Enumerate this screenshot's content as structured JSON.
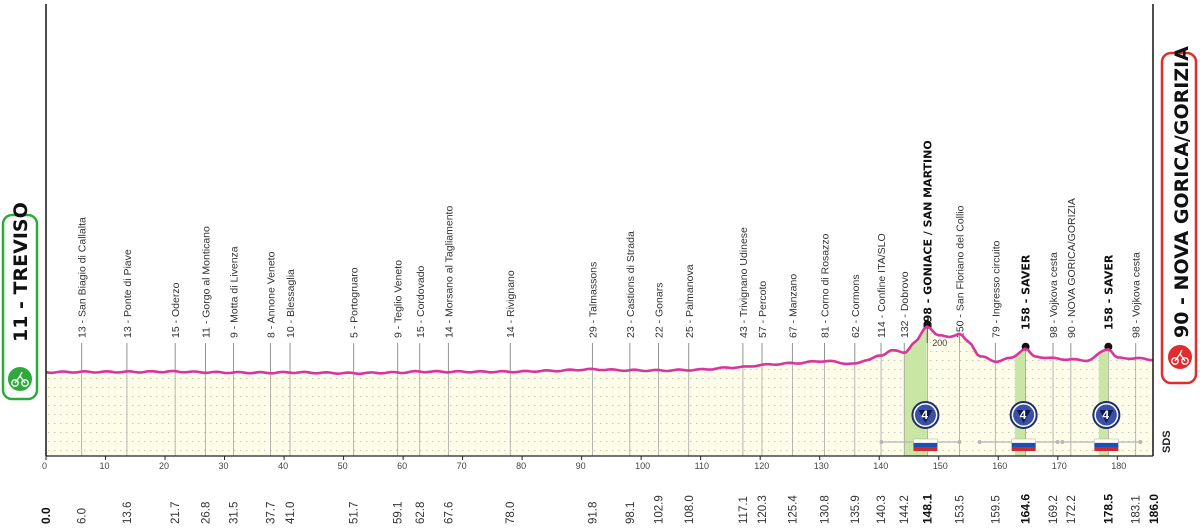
{
  "chart_data": {
    "type": "area",
    "start": {
      "altitude": "11",
      "name": "TREVISO",
      "label": "11 - TREVISO"
    },
    "finish": {
      "altitude": "90",
      "name": "NOVA GORICA/GORIZIA",
      "label": "90 - NOVA GORICA/GORIZIA"
    },
    "x_unit": "km",
    "xlim": [
      0,
      186
    ],
    "x_ticks": [
      0,
      10,
      20,
      30,
      40,
      50,
      60,
      70,
      80,
      90,
      100,
      110,
      120,
      130,
      140,
      150,
      160,
      170,
      180
    ],
    "inner_y_tick": "200",
    "waypoints": [
      {
        "km": "6.0",
        "label": "13 - San Biagio di Callalta"
      },
      {
        "km": "13.6",
        "label": "13 - Ponte di Piave"
      },
      {
        "km": "21.7",
        "label": "15 - Oderzo"
      },
      {
        "km": "26.8",
        "label": "11 - Gorgo al Monticano"
      },
      {
        "km": "31.5",
        "label": "9 - Motta di Livenza"
      },
      {
        "km": "37.7",
        "label": "8 - Annone Veneto"
      },
      {
        "km": "41.0",
        "label": "10 - Blessaglia"
      },
      {
        "km": "51.7",
        "label": "5 - Portogruaro"
      },
      {
        "km": "59.1",
        "label": "9 - Teglio Veneto"
      },
      {
        "km": "62.8",
        "label": "15 - Cordovado"
      },
      {
        "km": "67.6",
        "label": "14 - Morsano al Tagliamento"
      },
      {
        "km": "78.0",
        "label": "14 - Rivignano"
      },
      {
        "km": "91.8",
        "label": "29 - Talmassons"
      },
      {
        "km": "98.1",
        "label": "23 - Castions di Strada"
      },
      {
        "km": "102.9",
        "label": "22 - Gonars"
      },
      {
        "km": "108.0",
        "label": "25 - Palmanova"
      },
      {
        "km": "117.1",
        "label": "43 - Trivignano Udinese"
      },
      {
        "km": "120.3",
        "label": "57 - Percoto"
      },
      {
        "km": "125.4",
        "label": "67 - Manzano"
      },
      {
        "km": "130.8",
        "label": "81 - Corno di Rosazzo"
      },
      {
        "km": "135.9",
        "label": "62 - Cormons"
      },
      {
        "km": "140.3",
        "label": "114 - Confine ITA/SLO"
      },
      {
        "km": "144.2",
        "label": "132 - Dobrovo"
      },
      {
        "km": "148.1",
        "label": "298 - GONIACE / SAN MARTINO",
        "major": true,
        "climb": true
      },
      {
        "km": "153.5",
        "label": "250 - San Floriano del Collio"
      },
      {
        "km": "159.5",
        "label": "79 - Ingresso circuito"
      },
      {
        "km": "164.6",
        "label": "158 - SAVER",
        "major": true,
        "climb": true
      },
      {
        "km": "169.2",
        "label": "98 - Vojkova cesta"
      },
      {
        "km": "172.2",
        "label": "90 - NOVA GORICA/GORIZIA"
      },
      {
        "km": "178.5",
        "label": "158 - SAVER",
        "major": true,
        "climb": true
      },
      {
        "km": "183.1",
        "label": "98 - Vojkova cesta"
      }
    ],
    "start_km_label": "0.0",
    "finish_km_label": "186.0",
    "profile": [
      [
        0,
        11
      ],
      [
        6,
        13
      ],
      [
        13.6,
        13
      ],
      [
        21.7,
        15
      ],
      [
        26.8,
        11
      ],
      [
        31.5,
        9
      ],
      [
        37.7,
        8
      ],
      [
        41,
        10
      ],
      [
        51.7,
        5
      ],
      [
        59.1,
        9
      ],
      [
        62.8,
        15
      ],
      [
        67.6,
        14
      ],
      [
        78,
        14
      ],
      [
        85,
        20
      ],
      [
        91.8,
        29
      ],
      [
        98.1,
        23
      ],
      [
        102.9,
        22
      ],
      [
        108,
        25
      ],
      [
        117.1,
        43
      ],
      [
        120.3,
        57
      ],
      [
        125.4,
        67
      ],
      [
        130.8,
        81
      ],
      [
        135.9,
        62
      ],
      [
        138,
        90
      ],
      [
        140.3,
        114
      ],
      [
        142,
        150
      ],
      [
        144.2,
        132
      ],
      [
        146,
        200
      ],
      [
        148.1,
        298
      ],
      [
        150,
        240
      ],
      [
        151.5,
        232
      ],
      [
        153.5,
        250
      ],
      [
        155,
        200
      ],
      [
        157,
        110
      ],
      [
        159.5,
        79
      ],
      [
        162,
        98
      ],
      [
        164.6,
        158
      ],
      [
        166,
        110
      ],
      [
        169.2,
        98
      ],
      [
        172.2,
        90
      ],
      [
        175,
        85
      ],
      [
        178.5,
        158
      ],
      [
        180,
        100
      ],
      [
        183.1,
        98
      ],
      [
        186,
        90
      ]
    ],
    "climbs": [
      {
        "start_km": 144.2,
        "summit_km": 148.1,
        "category": "4",
        "flag": "SLO"
      },
      {
        "start_km": 162.8,
        "summit_km": 164.6,
        "category": "4",
        "flag": "SLO"
      },
      {
        "start_km": 176.9,
        "summit_km": 178.5,
        "category": "4",
        "flag": "SLO"
      }
    ],
    "colors": {
      "profile": "#d9359a",
      "fill": "#fdfde9",
      "climb": "#c7e5a0",
      "start": "#2eaa3c",
      "finish": "#e02c2c",
      "badge": "#3a4fa8"
    },
    "brand": "SDS"
  }
}
